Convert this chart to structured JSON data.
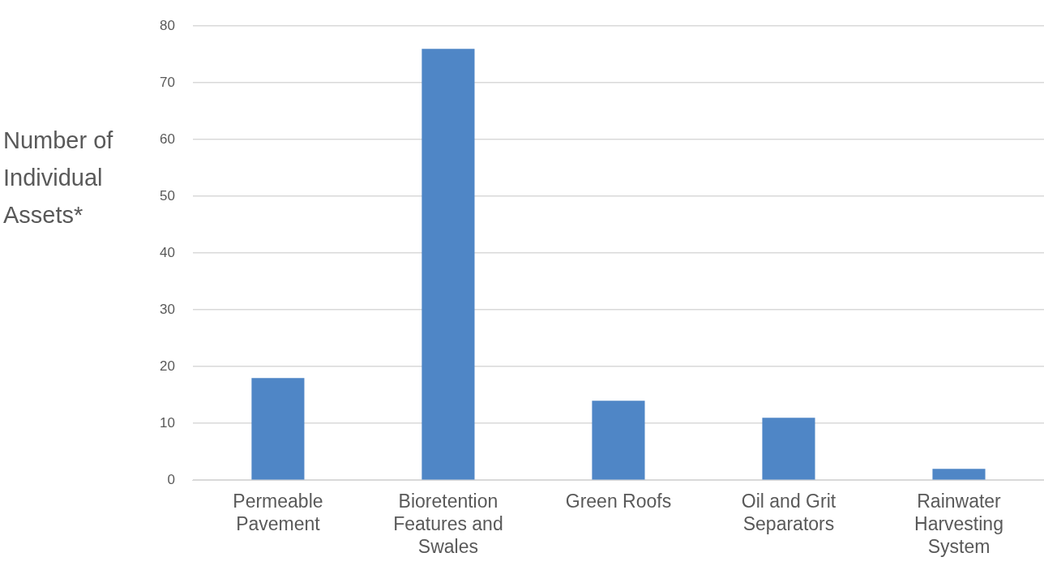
{
  "chart_data": {
    "type": "bar",
    "ylabel": "Number of Individual Assets*",
    "categories": [
      "Permeable Pavement",
      "Bioretention Features and Swales",
      "Green Roofs",
      "Oil and Grit Separators",
      "Rainwater Harvesting System"
    ],
    "values": [
      18,
      76,
      14,
      11,
      2
    ],
    "color": "#4f86c6",
    "ylim": [
      0,
      80
    ],
    "yticks": [
      0,
      10,
      20,
      30,
      40,
      50,
      60,
      70,
      80
    ],
    "grid": "y",
    "legend": false
  }
}
